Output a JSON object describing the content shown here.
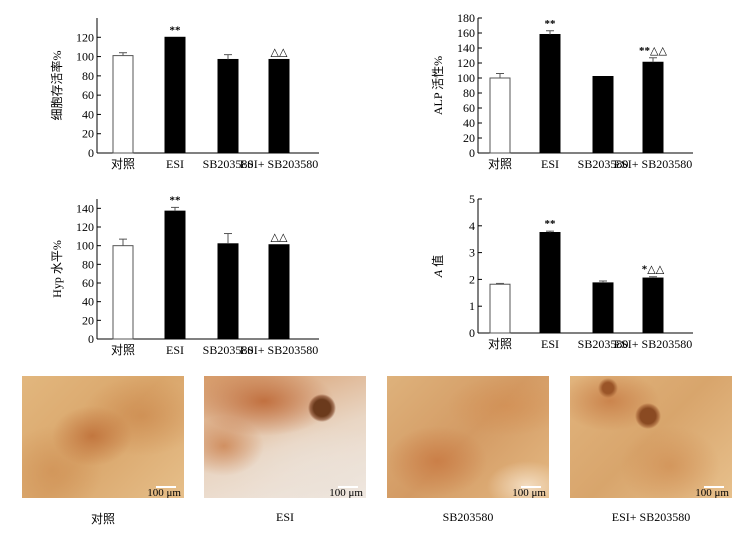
{
  "chart_data": [
    {
      "type": "bar",
      "ylabel": "细胞存活率%",
      "ylim": [
        0,
        140
      ],
      "ticks": [
        0,
        20,
        40,
        60,
        80,
        100,
        120
      ],
      "categories": [
        "对照",
        "ESI",
        "SB203580",
        "ESI+ SB203580"
      ],
      "values": [
        101,
        120,
        97,
        97
      ],
      "errors": [
        3,
        0,
        5,
        0
      ],
      "fills": [
        "#ffffff",
        "#000000",
        "#000000",
        "#000000"
      ],
      "annotations": [
        "",
        "**",
        "",
        "△△"
      ]
    },
    {
      "type": "bar",
      "ylabel": "ALP 活性%",
      "ylim": [
        0,
        180
      ],
      "ticks": [
        0,
        20,
        40,
        60,
        80,
        100,
        120,
        140,
        160,
        180
      ],
      "categories": [
        "对照",
        "ESI",
        "SB203580",
        "ESI+ SB203580"
      ],
      "values": [
        100,
        158,
        102,
        121
      ],
      "errors": [
        6,
        5,
        0,
        6
      ],
      "fills": [
        "#ffffff",
        "#000000",
        "#000000",
        "#000000"
      ],
      "annotations": [
        "",
        "**",
        "",
        "**△△"
      ]
    },
    {
      "type": "bar",
      "ylabel": "Hyp 水平%",
      "ylim": [
        0,
        150
      ],
      "ticks": [
        0,
        20,
        40,
        60,
        80,
        100,
        120,
        140
      ],
      "categories": [
        "对照",
        "ESI",
        "SB203580",
        "ESI+ SB203580"
      ],
      "values": [
        100,
        137,
        102,
        101
      ],
      "errors": [
        7,
        4,
        11,
        0
      ],
      "fills": [
        "#ffffff",
        "#000000",
        "#000000",
        "#000000"
      ],
      "annotations": [
        "",
        "**",
        "",
        "△△"
      ]
    },
    {
      "type": "bar",
      "ylabel": "A 值",
      "ylim": [
        0,
        5
      ],
      "ticks": [
        0,
        1,
        2,
        3,
        4,
        5
      ],
      "categories": [
        "对照",
        "ESI",
        "SB203580",
        "ESI+ SB203580"
      ],
      "values": [
        1.82,
        3.75,
        1.87,
        2.05
      ],
      "errors": [
        0.03,
        0.05,
        0.07,
        0.05
      ],
      "fills": [
        "#ffffff",
        "#000000",
        "#000000",
        "#000000"
      ],
      "annotations": [
        "",
        "**",
        "",
        "*△△"
      ]
    }
  ],
  "photos": [
    {
      "caption": "对照",
      "scale": "100 μm"
    },
    {
      "caption": "ESI",
      "scale": "100 μm"
    },
    {
      "caption": "SB203580",
      "scale": "100 μm"
    },
    {
      "caption": "ESI+ SB203580",
      "scale": "100 μm"
    }
  ]
}
